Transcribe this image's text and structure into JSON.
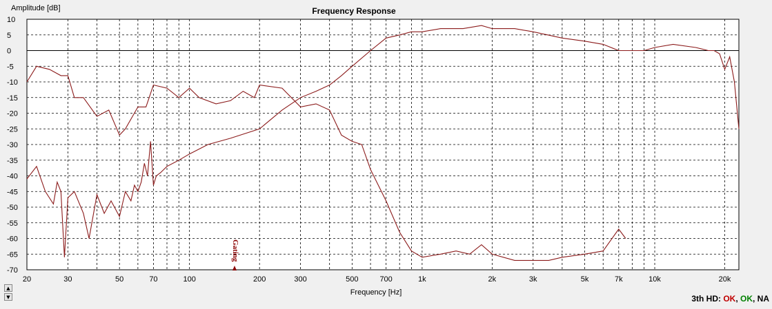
{
  "chart_data": {
    "type": "line",
    "title": "Frequency Response",
    "ylabel": "Amplitude [dB]",
    "xlabel": "Frequency [Hz]",
    "xscale": "log",
    "xlim": [
      20,
      23000
    ],
    "ylim": [
      -70,
      10
    ],
    "grid": true,
    "xticks": [
      20,
      30,
      50,
      70,
      100,
      200,
      300,
      500,
      700,
      1000,
      2000,
      3000,
      5000,
      7000,
      10000,
      20000
    ],
    "xtick_labels": [
      "20",
      "30",
      "50",
      "70",
      "100",
      "200",
      "300",
      "500",
      "700",
      "1k",
      "2k",
      "3k",
      "5k",
      "7k",
      "10k",
      "20k"
    ],
    "yticks": [
      10,
      5,
      0,
      -5,
      -10,
      -15,
      -20,
      -25,
      -30,
      -35,
      -40,
      -45,
      -50,
      -55,
      -60,
      -65,
      -70
    ],
    "colors": {
      "curve": "#8b1a1a",
      "gating": "#8b0000",
      "ok": "#c00000",
      "ok2": "#008000"
    },
    "series": [
      {
        "values": [
          [
            20,
            -41
          ],
          [
            22,
            -37
          ],
          [
            24,
            -45
          ],
          [
            26,
            -49
          ],
          [
            27,
            -42
          ],
          [
            28,
            -45
          ],
          [
            29,
            -66
          ],
          [
            30,
            -47
          ],
          [
            32,
            -45
          ],
          [
            35,
            -52
          ],
          [
            37,
            -60
          ],
          [
            40,
            -46
          ],
          [
            43,
            -52
          ],
          [
            46,
            -48
          ],
          [
            50,
            -53
          ],
          [
            53,
            -45
          ],
          [
            56,
            -48
          ],
          [
            58,
            -43
          ],
          [
            60,
            -45
          ],
          [
            62,
            -42
          ],
          [
            64,
            -36
          ],
          [
            66,
            -40
          ],
          [
            68,
            -29
          ],
          [
            70,
            -43
          ],
          [
            72,
            -40
          ],
          [
            75,
            -39
          ],
          [
            80,
            -37
          ],
          [
            90,
            -35
          ],
          [
            100,
            -33
          ],
          [
            120,
            -30
          ],
          [
            150,
            -28
          ],
          [
            200,
            -25
          ],
          [
            250,
            -19
          ],
          [
            300,
            -15
          ],
          [
            350,
            -13
          ],
          [
            400,
            -11
          ],
          [
            450,
            -8
          ],
          [
            500,
            -5
          ],
          [
            600,
            0
          ],
          [
            700,
            4
          ],
          [
            800,
            5
          ],
          [
            900,
            6
          ],
          [
            1000,
            6
          ],
          [
            1200,
            7
          ],
          [
            1500,
            7
          ],
          [
            1800,
            8
          ],
          [
            2000,
            7
          ],
          [
            2500,
            7
          ],
          [
            3000,
            6
          ],
          [
            4000,
            4
          ],
          [
            5000,
            3
          ],
          [
            6000,
            2
          ],
          [
            7000,
            0
          ],
          [
            8000,
            0
          ],
          [
            9000,
            0
          ],
          [
            10000,
            1
          ],
          [
            12000,
            2
          ],
          [
            15000,
            1
          ],
          [
            17000,
            0
          ],
          [
            18000,
            0
          ],
          [
            19000,
            -1
          ],
          [
            20000,
            -6
          ],
          [
            21000,
            -2
          ],
          [
            22000,
            -10
          ],
          [
            23000,
            -25
          ]
        ]
      },
      {
        "values": [
          [
            20,
            -10
          ],
          [
            22,
            -5
          ],
          [
            25,
            -6
          ],
          [
            28,
            -8
          ],
          [
            30,
            -8
          ],
          [
            32,
            -15
          ],
          [
            35,
            -15
          ],
          [
            40,
            -21
          ],
          [
            45,
            -19
          ],
          [
            50,
            -27
          ],
          [
            53,
            -25
          ],
          [
            60,
            -18
          ],
          [
            65,
            -18
          ],
          [
            70,
            -11
          ],
          [
            80,
            -12
          ],
          [
            90,
            -15
          ],
          [
            100,
            -12
          ],
          [
            110,
            -15
          ],
          [
            130,
            -17
          ],
          [
            150,
            -16
          ],
          [
            170,
            -13
          ],
          [
            190,
            -15
          ],
          [
            200,
            -11
          ],
          [
            250,
            -12
          ],
          [
            300,
            -18
          ],
          [
            350,
            -17
          ],
          [
            400,
            -19
          ],
          [
            450,
            -27
          ],
          [
            500,
            -29
          ],
          [
            550,
            -30
          ],
          [
            600,
            -38
          ],
          [
            700,
            -48
          ],
          [
            800,
            -58
          ],
          [
            900,
            -64
          ],
          [
            1000,
            -66
          ],
          [
            1200,
            -65
          ],
          [
            1400,
            -64
          ],
          [
            1600,
            -65
          ],
          [
            1800,
            -62
          ],
          [
            2000,
            -65
          ],
          [
            2500,
            -67
          ],
          [
            3000,
            -67
          ],
          [
            3500,
            -67
          ],
          [
            4000,
            -66
          ],
          [
            5000,
            -65
          ],
          [
            6000,
            -64
          ],
          [
            7000,
            -57
          ],
          [
            7500,
            -60
          ]
        ]
      }
    ],
    "annotation": "Gating"
  },
  "status": {
    "prefix": "3th HD: ",
    "ok1": "OK",
    "sep1": ", ",
    "ok2": "OK",
    "sep2": ", ",
    "na": "NA"
  },
  "scroll": {
    "up": "▲",
    "down": "▼"
  }
}
